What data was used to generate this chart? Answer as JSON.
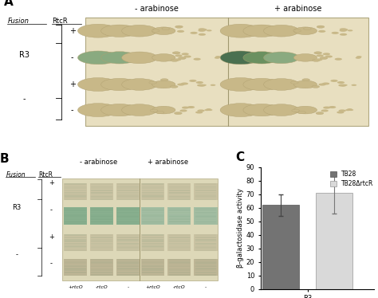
{
  "panel_A_label": "A",
  "panel_B_label": "B",
  "panel_C_label": "C",
  "arabinose_minus": "- arabinose",
  "arabinose_plus": "+ arabinose",
  "fusion_label": "Fusion",
  "rtcR_label": "RtcR",
  "r3_label": "R3",
  "minus_label": "-",
  "rtcO_plus": "+rtcO",
  "rtcO_minus": "-rtcO",
  "bar_values": [
    62,
    71
  ],
  "bar_errors": [
    8,
    15
  ],
  "bar_colors": [
    "#737373",
    "#d9d9d9"
  ],
  "legend_labels": [
    "TB28",
    "TB28ΔrtcR"
  ],
  "x_tick_labels": [
    "R3"
  ],
  "ylabel": "β-galactosidase activity",
  "ylim": [
    0,
    90
  ],
  "yticks": [
    0,
    10,
    20,
    30,
    40,
    50,
    60,
    70,
    80,
    90
  ],
  "plate_bg": "#e8dfc0",
  "plate_edge": "#b0a880",
  "divider_color": "#a09870",
  "spot_tan": "#c8b888",
  "spot_tan_edge": "#b0a070",
  "spot_green1": "#8aaa80",
  "spot_green2": "#6a9060",
  "spot_green3": "#5a8050",
  "spot_dark_green": "#4a7050",
  "filter_bg": "#ddd8b8",
  "filter_band_light": "#c8c0a0",
  "filter_band_green": "#7aaa88",
  "filter_band_green2": "#9abaa0",
  "filter_band_tan": "#bab090",
  "bg_color": "#ffffff"
}
